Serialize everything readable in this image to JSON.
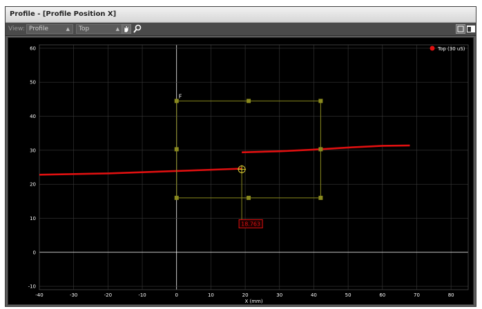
{
  "window": {
    "title": "Profile - [Profile Position X]"
  },
  "toolbar": {
    "view_label": "View:",
    "view_select": "Profile",
    "surface_select": "Top"
  },
  "colors": {
    "profile_line": "#e01010",
    "grid": "#3a3a3a",
    "region_box": "#8a8a1e",
    "axis_white": "#ffffff"
  },
  "icons": {
    "pan": "hand-pan-icon",
    "zoom": "magnifier-zoom-icon",
    "layout1": "single-view-icon",
    "layout2": "dual-view-icon"
  },
  "chart_data": {
    "type": "line",
    "xlabel": "X (mm)",
    "ylabel": "",
    "xlim": [
      -40,
      85
    ],
    "ylim": [
      -11,
      61
    ],
    "x_ticks": [
      -40,
      -30,
      -20,
      -10,
      0,
      10,
      20,
      30,
      40,
      50,
      60,
      70,
      80
    ],
    "y_ticks": [
      -10,
      0,
      10,
      20,
      30,
      40,
      50,
      60
    ],
    "grid": true,
    "legend": "top-right",
    "series": [
      {
        "name": "Top (30 uS)",
        "segments": [
          [
            [
              -40,
              22.8
            ],
            [
              -20,
              23.2
            ],
            [
              0,
              23.9
            ],
            [
              19,
              24.6
            ]
          ],
          [
            [
              19,
              29.4
            ],
            [
              30,
              29.7
            ],
            [
              40,
              30.2
            ],
            [
              50,
              30.8
            ],
            [
              60,
              31.3
            ],
            [
              68,
              31.4
            ]
          ]
        ]
      }
    ],
    "region_box": {
      "label": "F",
      "x": [
        0,
        42
      ],
      "y": [
        16,
        44.5
      ],
      "handles": [
        [
          0,
          44.5
        ],
        [
          21,
          44.5
        ],
        [
          42,
          44.5
        ],
        [
          0,
          30.3
        ],
        [
          42,
          30.3
        ],
        [
          0,
          16
        ],
        [
          21,
          16
        ],
        [
          42,
          16
        ]
      ]
    },
    "measurement": {
      "x": 19,
      "y_marker": 24.4,
      "line_bottom": 10,
      "value": "18.763"
    }
  }
}
